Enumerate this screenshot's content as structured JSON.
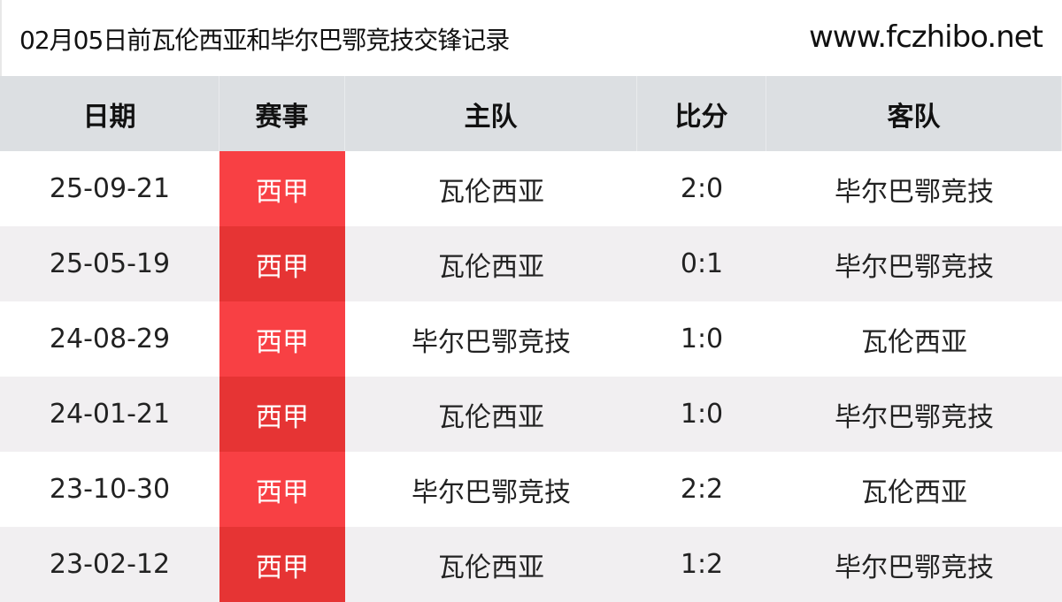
{
  "header": {
    "title": "02月05日前瓦伦西亚和毕尔巴鄂竞技交锋记录",
    "site": "www.fczhibo.net"
  },
  "columns": [
    "日期",
    "赛事",
    "主队",
    "比分",
    "客队"
  ],
  "rows": [
    {
      "date": "25-09-21",
      "league": "西甲",
      "home": "瓦伦西亚",
      "score": "2:0",
      "away": "毕尔巴鄂竞技"
    },
    {
      "date": "25-05-19",
      "league": "西甲",
      "home": "瓦伦西亚",
      "score": "0:1",
      "away": "毕尔巴鄂竞技"
    },
    {
      "date": "24-08-29",
      "league": "西甲",
      "home": "毕尔巴鄂竞技",
      "score": "1:0",
      "away": "瓦伦西亚"
    },
    {
      "date": "24-01-21",
      "league": "西甲",
      "home": "瓦伦西亚",
      "score": "1:0",
      "away": "毕尔巴鄂竞技"
    },
    {
      "date": "23-10-30",
      "league": "西甲",
      "home": "毕尔巴鄂竞技",
      "score": "2:2",
      "away": "瓦伦西亚"
    },
    {
      "date": "23-02-12",
      "league": "西甲",
      "home": "瓦伦西亚",
      "score": "1:2",
      "away": "毕尔巴鄂竞技"
    }
  ],
  "colors": {
    "league_odd": "#f84044",
    "league_even": "#e63434",
    "header_bg": "#dcdfe2",
    "alt_row": "#f1eff1"
  }
}
